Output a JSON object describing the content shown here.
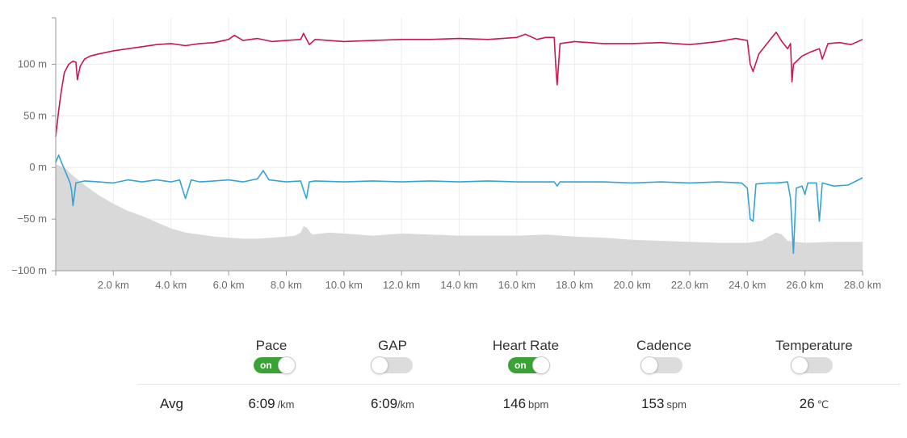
{
  "chart_data": {
    "type": "line",
    "y_axis": {
      "ticks": [
        "100 m",
        "50 m",
        "0 m",
        "−50 m",
        "−100 m"
      ],
      "tick_values": [
        100,
        50,
        0,
        -50,
        -100
      ],
      "range": [
        -100,
        145
      ],
      "grid": true
    },
    "x_axis": {
      "ticks": [
        "2.0 km",
        "4.0 km",
        "6.0 km",
        "8.0 km",
        "10.0 km",
        "12.0 km",
        "14.0 km",
        "16.0 km",
        "18.0 km",
        "20.0 km",
        "22.0 km",
        "24.0 km",
        "26.0 km",
        "28.0 km"
      ],
      "tick_values": [
        2,
        4,
        6,
        8,
        10,
        12,
        14,
        16,
        18,
        20,
        22,
        24,
        26,
        28
      ],
      "range": [
        0,
        28
      ],
      "grid": true
    },
    "series": [
      {
        "color": "#c8184e",
        "style": "line",
        "points": [
          [
            0,
            30
          ],
          [
            0.1,
            55
          ],
          [
            0.2,
            75
          ],
          [
            0.3,
            92
          ],
          [
            0.45,
            100
          ],
          [
            0.6,
            103
          ],
          [
            0.7,
            102
          ],
          [
            0.75,
            85
          ],
          [
            0.85,
            98
          ],
          [
            1.0,
            105
          ],
          [
            1.2,
            108
          ],
          [
            1.5,
            110
          ],
          [
            2.0,
            113
          ],
          [
            2.5,
            115
          ],
          [
            3.0,
            117
          ],
          [
            3.5,
            119
          ],
          [
            4.0,
            120
          ],
          [
            4.5,
            118
          ],
          [
            5.0,
            120
          ],
          [
            5.5,
            121
          ],
          [
            6.0,
            124
          ],
          [
            6.2,
            128
          ],
          [
            6.5,
            123
          ],
          [
            7.0,
            125
          ],
          [
            7.5,
            122
          ],
          [
            8.0,
            123
          ],
          [
            8.5,
            124
          ],
          [
            8.6,
            130
          ],
          [
            8.8,
            119
          ],
          [
            9.0,
            124
          ],
          [
            10.0,
            122
          ],
          [
            11.0,
            123
          ],
          [
            12.0,
            124
          ],
          [
            13.0,
            124
          ],
          [
            14.0,
            125
          ],
          [
            15.0,
            124
          ],
          [
            16.0,
            126
          ],
          [
            16.3,
            129
          ],
          [
            16.7,
            124
          ],
          [
            17.0,
            126
          ],
          [
            17.3,
            126
          ],
          [
            17.35,
            100
          ],
          [
            17.4,
            80
          ],
          [
            17.5,
            120
          ],
          [
            18.0,
            122
          ],
          [
            19.0,
            120
          ],
          [
            20.0,
            120
          ],
          [
            21.0,
            121
          ],
          [
            22.0,
            119
          ],
          [
            23.0,
            122
          ],
          [
            23.6,
            125
          ],
          [
            24.0,
            123
          ],
          [
            24.1,
            100
          ],
          [
            24.2,
            93
          ],
          [
            24.4,
            110
          ],
          [
            24.8,
            124
          ],
          [
            25.0,
            131
          ],
          [
            25.2,
            122
          ],
          [
            25.4,
            115
          ],
          [
            25.5,
            120
          ],
          [
            25.55,
            83
          ],
          [
            25.6,
            100
          ],
          [
            25.9,
            108
          ],
          [
            26.2,
            112
          ],
          [
            26.5,
            115
          ],
          [
            26.6,
            105
          ],
          [
            26.8,
            120
          ],
          [
            27.2,
            121
          ],
          [
            27.6,
            119
          ],
          [
            28.0,
            124
          ]
        ]
      },
      {
        "color": "#34a4d4",
        "style": "line",
        "points": [
          [
            0,
            5
          ],
          [
            0.1,
            12
          ],
          [
            0.2,
            5
          ],
          [
            0.35,
            -5
          ],
          [
            0.5,
            -15
          ],
          [
            0.55,
            -22
          ],
          [
            0.6,
            -37
          ],
          [
            0.7,
            -15
          ],
          [
            1.0,
            -13
          ],
          [
            1.5,
            -14
          ],
          [
            2.0,
            -15
          ],
          [
            2.5,
            -12
          ],
          [
            3.0,
            -14
          ],
          [
            3.5,
            -12
          ],
          [
            4.0,
            -14
          ],
          [
            4.3,
            -12
          ],
          [
            4.5,
            -30
          ],
          [
            4.7,
            -12
          ],
          [
            5.0,
            -14
          ],
          [
            5.5,
            -13
          ],
          [
            6.0,
            -12
          ],
          [
            6.5,
            -14
          ],
          [
            7.0,
            -11
          ],
          [
            7.2,
            -3
          ],
          [
            7.4,
            -12
          ],
          [
            8.0,
            -14
          ],
          [
            8.5,
            -13
          ],
          [
            8.6,
            -22
          ],
          [
            8.7,
            -30
          ],
          [
            8.8,
            -14
          ],
          [
            9.0,
            -13
          ],
          [
            10.0,
            -14
          ],
          [
            11.0,
            -13
          ],
          [
            12.0,
            -14
          ],
          [
            13.0,
            -13
          ],
          [
            14.0,
            -14
          ],
          [
            15.0,
            -13
          ],
          [
            16.0,
            -14
          ],
          [
            17.0,
            -14
          ],
          [
            17.3,
            -14
          ],
          [
            17.4,
            -18
          ],
          [
            17.5,
            -14
          ],
          [
            18.0,
            -14
          ],
          [
            19.0,
            -14
          ],
          [
            20.0,
            -15
          ],
          [
            21.0,
            -14
          ],
          [
            22.0,
            -15
          ],
          [
            23.0,
            -14
          ],
          [
            23.8,
            -15
          ],
          [
            24.0,
            -20
          ],
          [
            24.1,
            -50
          ],
          [
            24.2,
            -52
          ],
          [
            24.3,
            -16
          ],
          [
            24.7,
            -15
          ],
          [
            25.0,
            -15
          ],
          [
            25.4,
            -14
          ],
          [
            25.5,
            -30
          ],
          [
            25.6,
            -83
          ],
          [
            25.7,
            -20
          ],
          [
            25.9,
            -18
          ],
          [
            26.0,
            -26
          ],
          [
            26.1,
            -15
          ],
          [
            26.4,
            -15
          ],
          [
            26.5,
            -52
          ],
          [
            26.6,
            -15
          ],
          [
            27.0,
            -18
          ],
          [
            27.5,
            -17
          ],
          [
            28.0,
            -10
          ]
        ]
      },
      {
        "color": "#d9d9d9",
        "style": "area",
        "points": [
          [
            0,
            3
          ],
          [
            0.3,
            0
          ],
          [
            0.6,
            -8
          ],
          [
            1.0,
            -17
          ],
          [
            1.5,
            -27
          ],
          [
            2.0,
            -35
          ],
          [
            2.5,
            -42
          ],
          [
            3.0,
            -47
          ],
          [
            3.5,
            -53
          ],
          [
            4.0,
            -59
          ],
          [
            4.5,
            -63
          ],
          [
            5.0,
            -65
          ],
          [
            5.5,
            -67
          ],
          [
            6.0,
            -68
          ],
          [
            6.5,
            -69
          ],
          [
            7.0,
            -69
          ],
          [
            7.5,
            -68
          ],
          [
            8.0,
            -67
          ],
          [
            8.3,
            -66
          ],
          [
            8.5,
            -63
          ],
          [
            8.6,
            -57
          ],
          [
            8.7,
            -58
          ],
          [
            8.9,
            -65
          ],
          [
            9.5,
            -63
          ],
          [
            10.0,
            -64
          ],
          [
            10.5,
            -65
          ],
          [
            11.0,
            -66
          ],
          [
            12.0,
            -64
          ],
          [
            13.0,
            -65
          ],
          [
            14.0,
            -66
          ],
          [
            15.0,
            -66
          ],
          [
            16.0,
            -66
          ],
          [
            17.0,
            -65
          ],
          [
            18.0,
            -67
          ],
          [
            19.0,
            -68
          ],
          [
            20.0,
            -70
          ],
          [
            21.0,
            -71
          ],
          [
            22.0,
            -72
          ],
          [
            23.0,
            -73
          ],
          [
            24.0,
            -73
          ],
          [
            24.5,
            -71
          ],
          [
            24.8,
            -66
          ],
          [
            25.0,
            -63
          ],
          [
            25.2,
            -65
          ],
          [
            25.4,
            -71
          ],
          [
            26.0,
            -73
          ],
          [
            27.0,
            -72
          ],
          [
            28.0,
            -72
          ]
        ]
      }
    ]
  },
  "metrics": [
    {
      "label": "Pace",
      "on": true,
      "toggle_text": "on",
      "value": "6:09",
      "unit": "/km"
    },
    {
      "label": "GAP",
      "on": false,
      "toggle_text": "",
      "value": "6:09",
      "unit": "/km"
    },
    {
      "label": "Heart Rate",
      "on": true,
      "toggle_text": "on",
      "value": "146",
      "unit": "bpm"
    },
    {
      "label": "Cadence",
      "on": false,
      "toggle_text": "",
      "value": "153",
      "unit": "spm"
    },
    {
      "label": "Temperature",
      "on": false,
      "toggle_text": "",
      "value": "26",
      "unit": "℃"
    }
  ],
  "avg_label": "Avg"
}
